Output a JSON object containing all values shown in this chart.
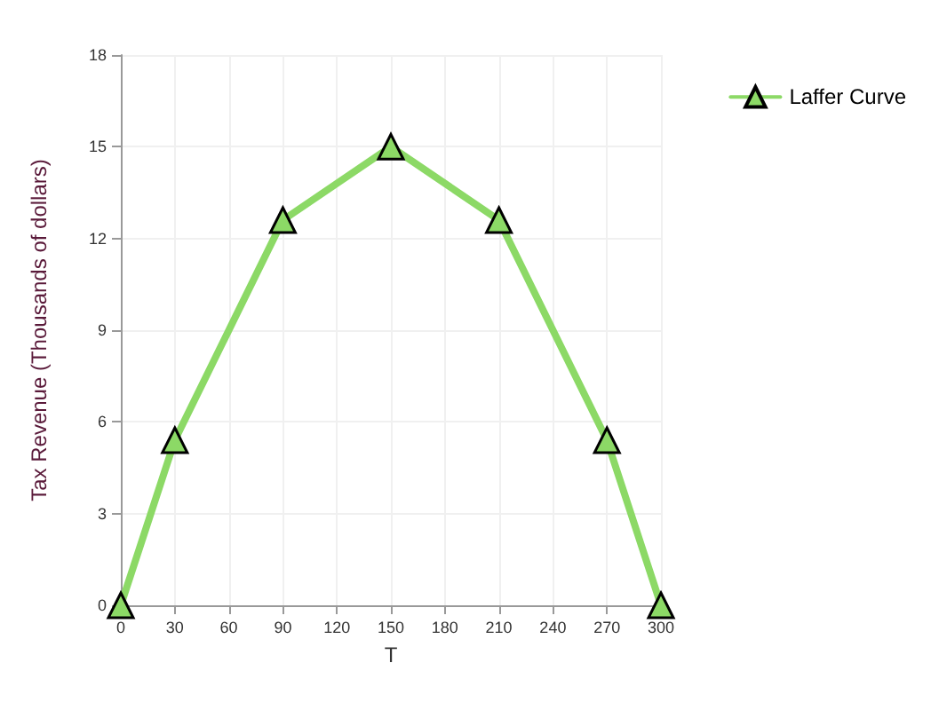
{
  "chart_data": {
    "type": "line",
    "xlabel": "T",
    "ylabel": "Tax Revenue (Thousands of dollars)",
    "x": [
      0,
      30,
      90,
      150,
      210,
      270,
      300
    ],
    "series": [
      {
        "name": "Laffer Curve",
        "color": "#8cd966",
        "values": [
          0,
          5.4,
          12.6,
          15,
          12.6,
          5.4,
          0
        ]
      }
    ],
    "xlim": [
      0,
      300
    ],
    "xticks": [
      0,
      30,
      60,
      90,
      120,
      150,
      180,
      210,
      240,
      270,
      300
    ],
    "ylim": [
      0,
      18
    ],
    "yticks": [
      0,
      3,
      6,
      9,
      12,
      15,
      18
    ],
    "grid": true,
    "legend": "top right",
    "marker": "triangle",
    "line_style": "solid"
  }
}
